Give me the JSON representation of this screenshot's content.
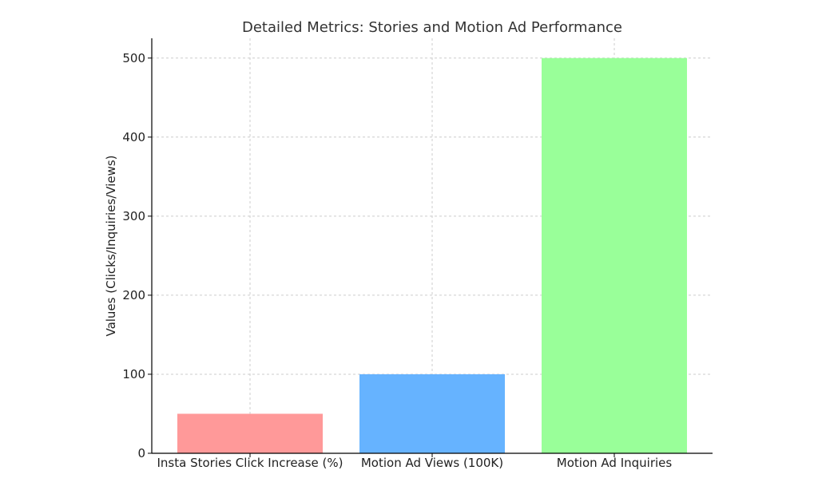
{
  "chart_data": {
    "type": "bar",
    "title": "Detailed Metrics: Stories and Motion Ad Performance",
    "xlabel": "",
    "ylabel": "Values (Clicks/Inquiries/Views)",
    "categories": [
      "Insta Stories Click Increase (%)",
      "Motion Ad Views (100K)",
      "Motion Ad Inquiries"
    ],
    "values": [
      50,
      100,
      500
    ],
    "colors": [
      "#ff9999",
      "#66b3ff",
      "#99ff99"
    ],
    "ylim": [
      0,
      525
    ],
    "yticks": [
      0,
      100,
      200,
      300,
      400,
      500
    ],
    "grid": true,
    "legend": "none"
  }
}
